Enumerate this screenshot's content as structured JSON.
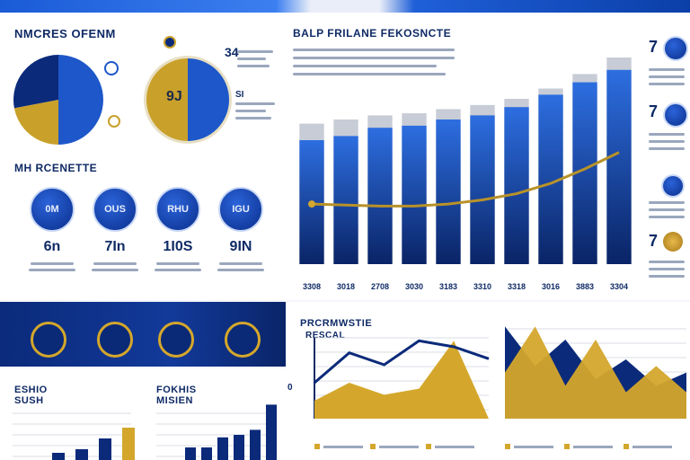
{
  "colors": {
    "blue": "#1d57c9",
    "navy": "#0b2a7a",
    "gold": "#d4a72c",
    "grey": "#c7ccd6"
  },
  "left_panel": {
    "title": "NMCRES OFENM",
    "pie_badge_num": "34",
    "ring_value": "9J",
    "ring_label": "SI",
    "section_title": "MH RCENETTE",
    "stats": [
      {
        "circle": "0M",
        "value": "6n"
      },
      {
        "circle": "OUS",
        "value": "7In"
      },
      {
        "circle": "RHU",
        "value": "1I0S"
      },
      {
        "circle": "IGU",
        "value": "9IN"
      }
    ]
  },
  "bar_panel": {
    "title": "BALP FRILANE FEKOSNCTE",
    "side_numbers": [
      "7",
      "7",
      "7"
    ]
  },
  "bottom_left": {
    "chart1_title": "ESHIO\nSUSH",
    "chart2_title": "FOKHIS\nMISIEN"
  },
  "bottom_right": {
    "title": "PRCRMWSTIE",
    "subtitle": "RESCAL",
    "axis_value": "0"
  },
  "chart_data": [
    {
      "type": "pie",
      "values": [
        50,
        22,
        28
      ],
      "colors": [
        "#1d57c9",
        "#c9a02a",
        "#0b2a7a"
      ]
    },
    {
      "type": "bar",
      "categories": [
        "3308",
        "3018",
        "2708",
        "3030",
        "3183",
        "3310",
        "3318",
        "3016",
        "3883",
        "3304"
      ],
      "series": [
        {
          "values": [
            60,
            62,
            66,
            67,
            70,
            72,
            76,
            82,
            88,
            94
          ]
        },
        {
          "values": [
            68,
            70,
            72,
            73,
            75,
            77,
            80,
            85,
            92,
            100
          ]
        }
      ],
      "line": [
        3,
        2.5,
        2,
        2,
        3,
        5,
        8,
        13,
        20,
        28
      ],
      "ylim": [
        0,
        100
      ]
    },
    {
      "type": "bar",
      "values": [
        4,
        6,
        12,
        18,
        27
      ],
      "ylim": [
        0,
        30
      ]
    },
    {
      "type": "bar",
      "values": [
        5,
        5,
        9,
        10,
        12,
        22
      ],
      "ylim": [
        0,
        25
      ]
    },
    {
      "type": "area",
      "x": [
        0,
        1,
        2,
        3,
        4,
        5
      ],
      "series": [
        {
          "values": [
            6,
            12,
            8,
            10,
            26,
            0
          ]
        }
      ],
      "line": [
        12,
        22,
        18,
        26,
        24,
        20
      ],
      "ylim": [
        0,
        30
      ]
    },
    {
      "type": "area",
      "x": [
        0,
        1,
        2,
        3,
        4,
        5,
        6
      ],
      "series": [
        {
          "values": [
            28,
            16,
            24,
            12,
            18,
            10,
            14
          ]
        },
        {
          "values": [
            14,
            28,
            10,
            24,
            8,
            16,
            8
          ]
        }
      ],
      "ylim": [
        0,
        30
      ]
    }
  ]
}
